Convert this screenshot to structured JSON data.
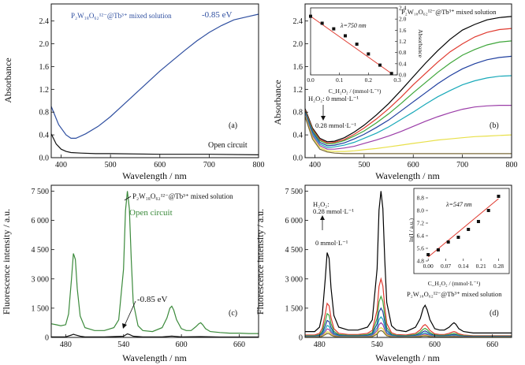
{
  "chart_data": [
    {
      "panel": "(a)",
      "type": "line",
      "xlabel": "Wavelength / nm",
      "ylabel": "Absorbance",
      "xlim": [
        380,
        800
      ],
      "ylim": [
        0,
        2.7
      ],
      "xticks": [
        400,
        500,
        600,
        700,
        800
      ],
      "yticks": [
        0.0,
        0.4,
        0.8,
        1.2,
        1.6,
        2.0,
        2.4
      ],
      "grid": false,
      "annotations": [
        "P₂W₁₈O₆₂¹²⁻@Tb³⁺ mixed solution",
        "-0.85 eV",
        "Open circuit"
      ],
      "series": [
        {
          "name": "-0.85 eV",
          "color": "#2f4fa0",
          "x": [
            380,
            395,
            410,
            420,
            430,
            450,
            475,
            500,
            525,
            550,
            575,
            600,
            625,
            650,
            675,
            700,
            725,
            750,
            775,
            800
          ],
          "y": [
            0.9,
            0.58,
            0.4,
            0.34,
            0.34,
            0.42,
            0.55,
            0.72,
            0.92,
            1.12,
            1.32,
            1.52,
            1.7,
            1.88,
            2.05,
            2.2,
            2.32,
            2.42,
            2.47,
            2.52
          ]
        },
        {
          "name": "Open circuit",
          "color": "#111111",
          "x": [
            380,
            390,
            400,
            410,
            420,
            440,
            470,
            500,
            600,
            700,
            800
          ],
          "y": [
            0.42,
            0.24,
            0.15,
            0.11,
            0.09,
            0.08,
            0.07,
            0.07,
            0.06,
            0.06,
            0.05
          ]
        }
      ]
    },
    {
      "panel": "(b)",
      "type": "line",
      "xlabel": "Wavelength / nm",
      "ylabel": "Absorbance",
      "xlim": [
        380,
        800
      ],
      "ylim": [
        0,
        2.7
      ],
      "xticks": [
        400,
        500,
        600,
        700,
        800
      ],
      "yticks": [
        0.0,
        0.4,
        0.8,
        1.2,
        1.6,
        2.0,
        2.4
      ],
      "grid": false,
      "annotations": [
        "P₂W₁₈O₆₂¹²⁻@Tb³⁺ mixed solution",
        "H₂O₂: 0 mmol·L⁻¹",
        "0.28 mmol·L⁻¹"
      ],
      "series": [
        {
          "color": "#000000",
          "x": [
            380,
            395,
            410,
            425,
            440,
            460,
            480,
            500,
            525,
            550,
            575,
            600,
            625,
            650,
            675,
            700,
            725,
            750,
            775,
            800
          ],
          "y": [
            0.86,
            0.52,
            0.34,
            0.28,
            0.29,
            0.35,
            0.45,
            0.57,
            0.75,
            0.95,
            1.18,
            1.42,
            1.66,
            1.88,
            2.08,
            2.24,
            2.34,
            2.42,
            2.46,
            2.48
          ]
        },
        {
          "color": "#e03a2f",
          "x": [
            380,
            395,
            410,
            425,
            440,
            460,
            480,
            500,
            525,
            550,
            575,
            600,
            625,
            650,
            675,
            700,
            725,
            750,
            775,
            800
          ],
          "y": [
            0.84,
            0.5,
            0.32,
            0.26,
            0.27,
            0.32,
            0.41,
            0.52,
            0.68,
            0.86,
            1.06,
            1.28,
            1.48,
            1.68,
            1.86,
            2.0,
            2.12,
            2.2,
            2.25,
            2.27
          ]
        },
        {
          "color": "#3ea63a",
          "x": [
            380,
            395,
            410,
            425,
            440,
            460,
            480,
            500,
            525,
            550,
            575,
            600,
            625,
            650,
            675,
            700,
            725,
            750,
            775,
            800
          ],
          "y": [
            0.82,
            0.48,
            0.3,
            0.24,
            0.25,
            0.3,
            0.38,
            0.47,
            0.61,
            0.77,
            0.95,
            1.14,
            1.32,
            1.5,
            1.66,
            1.8,
            1.9,
            1.98,
            2.03,
            2.05
          ]
        },
        {
          "color": "#1f3f9f",
          "x": [
            380,
            395,
            410,
            425,
            440,
            460,
            480,
            500,
            525,
            550,
            575,
            600,
            625,
            650,
            675,
            700,
            725,
            750,
            775,
            800
          ],
          "y": [
            0.8,
            0.45,
            0.27,
            0.21,
            0.22,
            0.26,
            0.33,
            0.41,
            0.53,
            0.66,
            0.82,
            0.98,
            1.14,
            1.3,
            1.44,
            1.56,
            1.65,
            1.72,
            1.76,
            1.78
          ]
        },
        {
          "color": "#19a9b9",
          "x": [
            380,
            395,
            410,
            425,
            440,
            460,
            480,
            500,
            525,
            550,
            575,
            600,
            625,
            650,
            675,
            700,
            725,
            750,
            775,
            800
          ],
          "y": [
            0.78,
            0.42,
            0.24,
            0.18,
            0.19,
            0.22,
            0.27,
            0.34,
            0.43,
            0.54,
            0.67,
            0.8,
            0.94,
            1.07,
            1.18,
            1.28,
            1.35,
            1.4,
            1.43,
            1.44
          ]
        },
        {
          "color": "#9b3da8",
          "x": [
            380,
            395,
            410,
            425,
            440,
            460,
            480,
            500,
            525,
            550,
            575,
            600,
            625,
            650,
            675,
            700,
            725,
            750,
            775,
            800
          ],
          "y": [
            0.76,
            0.39,
            0.21,
            0.15,
            0.15,
            0.17,
            0.2,
            0.25,
            0.31,
            0.38,
            0.46,
            0.55,
            0.64,
            0.72,
            0.79,
            0.85,
            0.89,
            0.91,
            0.92,
            0.92
          ]
        },
        {
          "color": "#e8e04a",
          "x": [
            380,
            395,
            410,
            425,
            440,
            460,
            480,
            500,
            525,
            550,
            575,
            600,
            625,
            650,
            675,
            700,
            725,
            750,
            775,
            800
          ],
          "y": [
            0.74,
            0.36,
            0.18,
            0.12,
            0.11,
            0.11,
            0.12,
            0.14,
            0.16,
            0.19,
            0.22,
            0.25,
            0.28,
            0.31,
            0.33,
            0.35,
            0.37,
            0.38,
            0.39,
            0.4
          ]
        },
        {
          "color": "#7a6a3a",
          "x": [
            380,
            395,
            410,
            425,
            440,
            460,
            480,
            500,
            525,
            550,
            575,
            600,
            625,
            650,
            675,
            700,
            725,
            750,
            775,
            800
          ],
          "y": [
            0.72,
            0.33,
            0.15,
            0.1,
            0.08,
            0.07,
            0.07,
            0.07,
            0.07,
            0.07,
            0.07,
            0.07,
            0.07,
            0.07,
            0.07,
            0.07,
            0.07,
            0.07,
            0.07,
            0.07
          ]
        }
      ],
      "inset": {
        "type": "scatter",
        "annotation": "λ=750 nm",
        "xlabel": "C_H₂O₂ / (mmol·L⁻¹)",
        "ylabel": "Absorbance",
        "xlim": [
          0.0,
          0.3
        ],
        "ylim": [
          0.0,
          2.4
        ],
        "xticks": [
          0.0,
          0.1,
          0.2,
          0.3
        ],
        "yticks": [
          0.0,
          0.4,
          0.8,
          1.2,
          1.6,
          2.0,
          2.4
        ],
        "points": {
          "x": [
            0.0,
            0.04,
            0.08,
            0.12,
            0.16,
            0.2,
            0.24,
            0.28
          ],
          "y": [
            2.1,
            1.85,
            1.65,
            1.4,
            1.1,
            0.75,
            0.35,
            0.05
          ]
        },
        "fit": {
          "x": [
            0.0,
            0.28
          ],
          "y": [
            2.1,
            0.05
          ],
          "color": "#e03a2f"
        }
      }
    },
    {
      "panel": "(c)",
      "type": "line",
      "xlabel": "Wavelength / nm",
      "ylabel": "Fluorescence intensity / a.u.",
      "xlim": [
        465,
        680
      ],
      "ylim": [
        0,
        7800
      ],
      "xticks": [
        480,
        540,
        600,
        660
      ],
      "yticks": [
        0,
        1500,
        3000,
        4500,
        6000,
        7500
      ],
      "ytick_labels": [
        "0",
        "1 500",
        "3 000",
        "4 500",
        "6 000",
        "7 500"
      ],
      "grid": false,
      "annotations": [
        "P₂W₁₈O₆₂¹²⁻@Tb³⁺ mixed solution",
        "Open circuit",
        "-0.85 eV"
      ],
      "series": [
        {
          "name": "Open circuit",
          "color": "#3b8a3b",
          "x": [
            465,
            470,
            475,
            480,
            483,
            486,
            488,
            490,
            492,
            495,
            500,
            510,
            520,
            530,
            535,
            540,
            542,
            544,
            546,
            548,
            550,
            555,
            560,
            570,
            580,
            585,
            588,
            590,
            592,
            595,
            600,
            605,
            610,
            615,
            618,
            620,
            622,
            625,
            630,
            640,
            650,
            660,
            670,
            680
          ],
          "y": [
            700,
            650,
            600,
            650,
            1200,
            3000,
            4300,
            4000,
            2500,
            1100,
            500,
            350,
            350,
            500,
            900,
            3500,
            6500,
            7500,
            6600,
            4000,
            1800,
            600,
            350,
            300,
            500,
            1000,
            1500,
            1600,
            1400,
            900,
            450,
            350,
            350,
            550,
            700,
            750,
            650,
            450,
            300,
            250,
            220,
            220,
            200,
            200
          ]
        },
        {
          "name": "-0.85 eV",
          "color": "#111111",
          "x": [
            465,
            470,
            480,
            486,
            488,
            490,
            495,
            500,
            520,
            540,
            544,
            546,
            550,
            560,
            580,
            590,
            600,
            620,
            640,
            660,
            680
          ],
          "y": [
            30,
            30,
            30,
            120,
            160,
            130,
            60,
            30,
            25,
            60,
            180,
            150,
            60,
            25,
            30,
            70,
            30,
            40,
            20,
            20,
            20
          ]
        }
      ]
    },
    {
      "panel": "(d)",
      "type": "line",
      "xlabel": "Wavelength / nm",
      "ylabel": "Fluorescence intensity / a.u.",
      "xlim": [
        465,
        680
      ],
      "ylim": [
        0,
        7800
      ],
      "xticks": [
        480,
        540,
        600,
        660
      ],
      "yticks": [
        0,
        1500,
        3000,
        4500,
        6000,
        7500
      ],
      "ytick_labels": [
        "0",
        "1 500",
        "3 000",
        "4 500",
        "6 000",
        "7 500"
      ],
      "grid": false,
      "annotations": [
        "H₂O₂:",
        "0.28 mmol·L⁻¹",
        "0 mmol·L⁻¹",
        "P₂W₁₈O₆₂¹²⁻@Tb³⁺ mixed solution"
      ],
      "peak_profile": {
        "x": [
          465,
          470,
          475,
          480,
          483,
          486,
          488,
          490,
          492,
          495,
          500,
          510,
          520,
          530,
          535,
          540,
          542,
          544,
          546,
          548,
          550,
          555,
          560,
          570,
          580,
          585,
          588,
          590,
          592,
          595,
          600,
          605,
          610,
          615,
          618,
          620,
          622,
          625,
          630,
          640,
          650,
          660,
          670,
          680
        ],
        "shape": [
          0.04,
          0.04,
          0.04,
          0.07,
          0.16,
          0.4,
          0.58,
          0.54,
          0.34,
          0.15,
          0.07,
          0.05,
          0.05,
          0.07,
          0.12,
          0.47,
          0.87,
          1.0,
          0.88,
          0.53,
          0.24,
          0.08,
          0.05,
          0.04,
          0.07,
          0.13,
          0.2,
          0.22,
          0.19,
          0.12,
          0.06,
          0.05,
          0.05,
          0.07,
          0.09,
          0.1,
          0.09,
          0.06,
          0.04,
          0.03,
          0.03,
          0.03,
          0.03,
          0.03
        ]
      },
      "series": [
        {
          "color": "#000000",
          "peak": 7500
        },
        {
          "color": "#e03a2f",
          "peak": 3000
        },
        {
          "color": "#3ea63a",
          "peak": 2100
        },
        {
          "color": "#1f3f9f",
          "peak": 1500
        },
        {
          "color": "#19a9b9",
          "peak": 1050
        },
        {
          "color": "#9b3da8",
          "peak": 750
        },
        {
          "color": "#e8e04a",
          "peak": 500
        },
        {
          "color": "#7a6a3a",
          "peak": 350
        }
      ],
      "inset": {
        "type": "scatter",
        "annotation": "λ=547 nm",
        "xlabel": "C_H₂O₂ / (mmol·L⁻¹)",
        "ylabel": "ln(I / a.u.)",
        "xlim": [
          -0.01,
          0.31
        ],
        "ylim": [
          4.8,
          9.2
        ],
        "xticks": [
          0.0,
          0.07,
          0.14,
          0.21,
          0.28
        ],
        "yticks": [
          4.8,
          5.6,
          6.4,
          7.2,
          8.0,
          8.8
        ],
        "points": {
          "x": [
            0.0,
            0.04,
            0.08,
            0.12,
            0.16,
            0.2,
            0.24,
            0.28
          ],
          "y": [
            5.2,
            5.5,
            6.0,
            6.3,
            6.8,
            7.3,
            8.0,
            8.9
          ]
        },
        "fit": {
          "x": [
            0.0,
            0.28
          ],
          "y": [
            5.05,
            8.75
          ],
          "color": "#e03a2f"
        }
      }
    }
  ]
}
